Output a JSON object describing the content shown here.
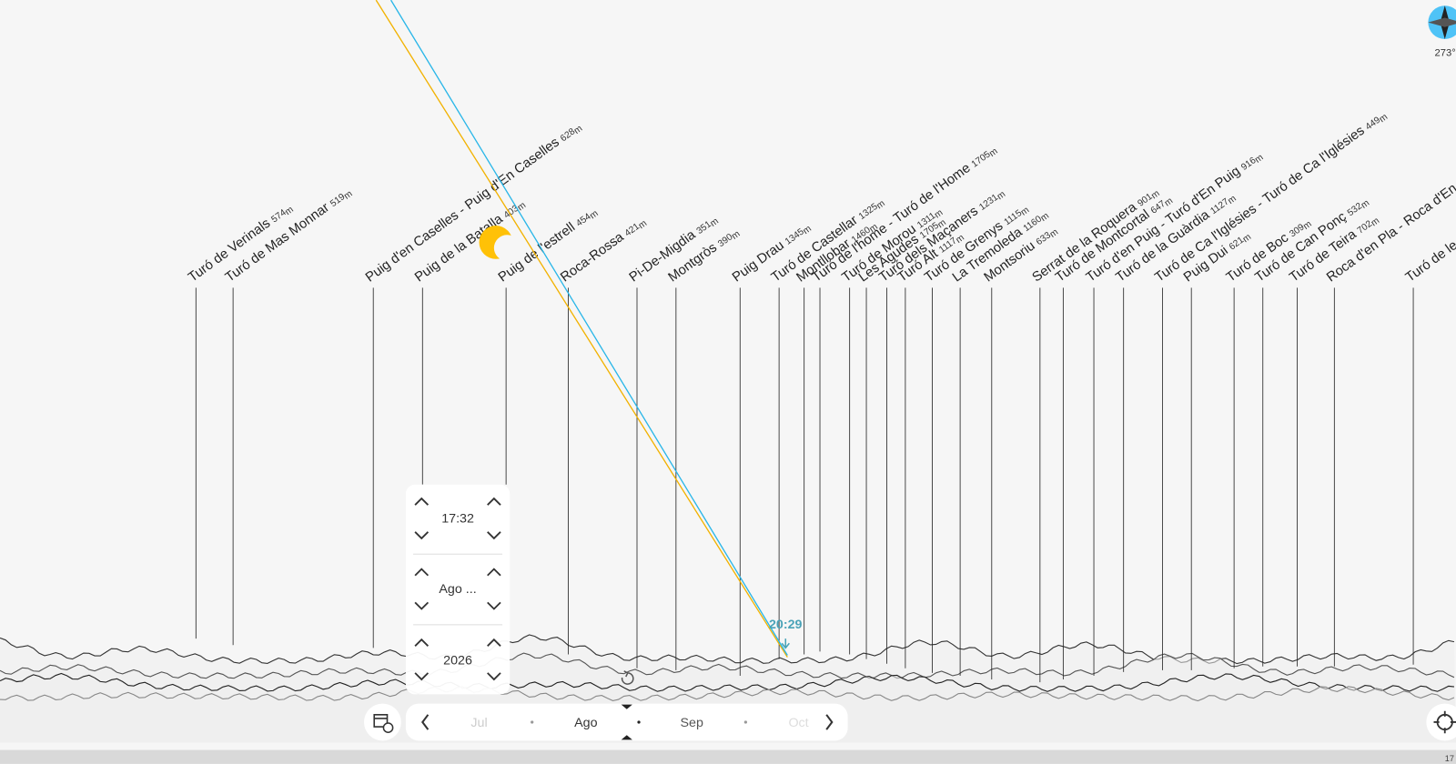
{
  "peaks": [
    {
      "name": "Turó de Verinals",
      "elevation": "574"
    },
    {
      "name": "Turó de Mas Monnar",
      "elevation": "519"
    },
    {
      "name": "Puig d'en Caselles - Puig d'En Caselles",
      "elevation": "628"
    },
    {
      "name": "Puig de la Batalla",
      "elevation": "403"
    },
    {
      "name": "Puig de l'estrell",
      "elevation": "454"
    },
    {
      "name": "Roca-Rossa",
      "elevation": "421"
    },
    {
      "name": "Pi-De-Migdia",
      "elevation": "351"
    },
    {
      "name": "Montgròs",
      "elevation": "390"
    },
    {
      "name": "Puig Drau",
      "elevation": "1345"
    },
    {
      "name": "Turó de Castellar",
      "elevation": "1325"
    },
    {
      "name": "Montllobar",
      "elevation": "1460"
    },
    {
      "name": "Turó de l'home - Turó de l'Home",
      "elevation": "1705"
    },
    {
      "name": "Turó de Morou",
      "elevation": "1311"
    },
    {
      "name": "Les Agudes",
      "elevation": "1705"
    },
    {
      "name": "Turó dels Maçaners",
      "elevation": "1231"
    },
    {
      "name": "Turó Alt",
      "elevation": "1117"
    },
    {
      "name": "Turó de Grenys",
      "elevation": "1115"
    },
    {
      "name": "La Tremoleda",
      "elevation": "1160"
    },
    {
      "name": "Montsoriu",
      "elevation": "633"
    },
    {
      "name": "Serrat de la Roquera",
      "elevation": "901"
    },
    {
      "name": "Turó de Montcortal",
      "elevation": "647"
    },
    {
      "name": "Turó d'en Puig - Turó d'En Puig",
      "elevation": "916"
    },
    {
      "name": "Turó de la Guàrdia",
      "elevation": "1127"
    },
    {
      "name": "Turó de Ca l'Iglésies - Turó de Ca l'Iglésies",
      "elevation": "449"
    },
    {
      "name": "Puig Dui",
      "elevation": "621"
    },
    {
      "name": "Turó de Boc",
      "elevation": "309"
    },
    {
      "name": "Turó de Can Ponç",
      "elevation": "532"
    },
    {
      "name": "Turó de Teira",
      "elevation": "702"
    },
    {
      "name": "Roca d'en Pla - Roca d'En P"
    },
    {
      "name": "Turó de le"
    }
  ],
  "elevation_unit": "m",
  "sunset_time": "20:29",
  "time_picker": {
    "time": "17:32",
    "month": "Ago ...",
    "year": "2026"
  },
  "month_bar": {
    "months": [
      "Jul",
      "Ago",
      "Sep",
      "Oct"
    ]
  },
  "compass": {
    "heading": "273°"
  },
  "status": "17"
}
